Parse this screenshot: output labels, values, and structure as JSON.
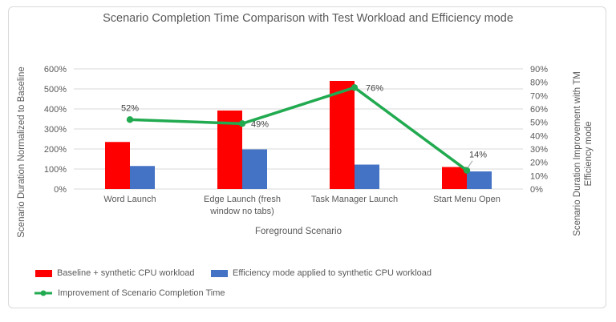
{
  "chart": {
    "title": "Scenario Completion Time Comparison with Test Workload and Efficiency mode",
    "x_axis_title": "Foreground Scenario",
    "left_axis_title": "Scenario Duration Normalized to Baseline",
    "right_axis_title": "Scenario Duration Improvement with TM Efficiency mode",
    "right_axis_title_lines": [
      "Scenario Duration Improvement with TM",
      "Efficiency mode"
    ],
    "legend": [
      {
        "label": "Baseline + synthetic CPU  workload",
        "color": "#FF0000",
        "marker": "rect"
      },
      {
        "label": "Efficiency mode applied to synthetic CPU workload",
        "color": "#4472C4",
        "marker": "rect"
      },
      {
        "label": "Improvement of Scenario Completion Time",
        "color": "#21AA50",
        "marker": "line"
      }
    ]
  },
  "chart_data": {
    "type": "combo",
    "title": "Scenario Completion Time Comparison with Test Workload and Efficiency mode",
    "xlabel": "Foreground Scenario",
    "categories": [
      "Word Launch",
      "Edge Launch (fresh window no tabs)",
      "Task Manager Launch",
      "Start Menu Open"
    ],
    "series": [
      {
        "name": "Baseline + synthetic CPU  workload",
        "type": "bar",
        "axis": "left",
        "color": "#FF0000",
        "values": [
          235,
          392,
          540,
          110
        ]
      },
      {
        "name": "Efficiency mode applied to synthetic CPU workload",
        "type": "bar",
        "axis": "left",
        "color": "#4472C4",
        "values": [
          115,
          198,
          122,
          88
        ]
      },
      {
        "name": "Improvement of Scenario Completion Time",
        "type": "line",
        "axis": "right",
        "color": "#21AA50",
        "values": [
          52,
          49,
          76,
          14
        ],
        "data_labels": [
          "52%",
          "49%",
          "76%",
          "14%"
        ]
      }
    ],
    "left_axis": {
      "label": "Scenario Duration Normalized to Baseline",
      "min": 0,
      "max": 600,
      "step": 100,
      "unit": "%",
      "ticks": [
        "0%",
        "100%",
        "200%",
        "300%",
        "400%",
        "500%",
        "600%"
      ]
    },
    "right_axis": {
      "label": "Scenario Duration Improvement with TM Efficiency mode",
      "min": 0,
      "max": 90,
      "step": 10,
      "unit": "%",
      "ticks": [
        "0%",
        "10%",
        "20%",
        "30%",
        "40%",
        "50%",
        "60%",
        "70%",
        "80%",
        "90%"
      ]
    },
    "grid": "horizontal-only",
    "legend_position": "bottom"
  }
}
